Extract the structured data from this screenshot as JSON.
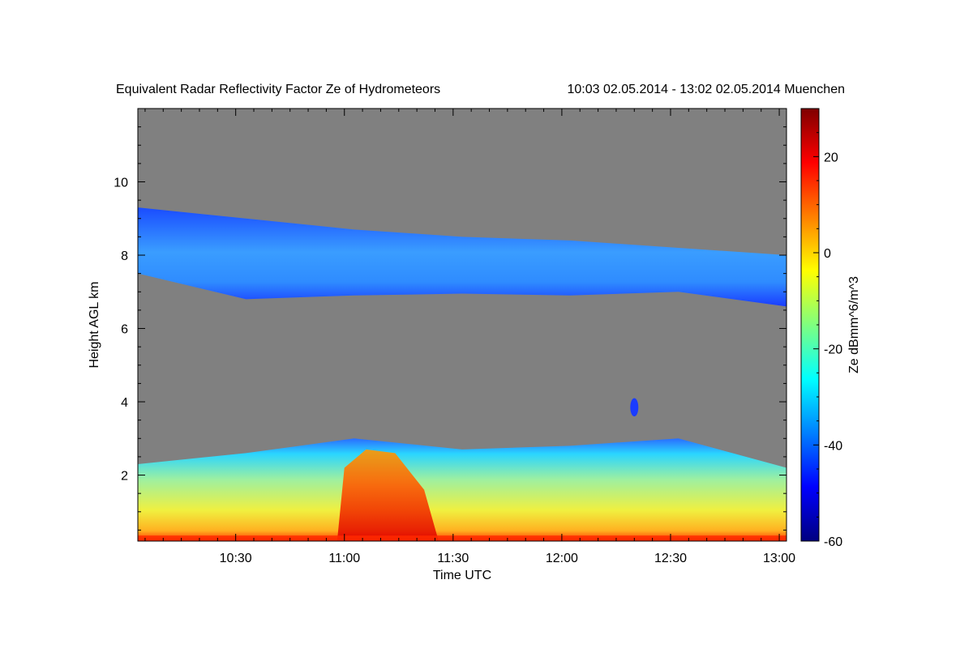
{
  "chart_data": {
    "type": "heatmap",
    "title": "Equivalent Radar Reflectivity Factor Ze of Hydrometeors",
    "subtitle": "10:03 02.05.2014 - 13:02 02.05.2014 Muenchen",
    "xlabel": "Time UTC",
    "ylabel": "Height AGL km",
    "colorbar_label": "Ze dBmm^6/m^3",
    "x_range": [
      "10:03",
      "13:02"
    ],
    "x_ticks": [
      "10:30",
      "11:00",
      "11:30",
      "12:00",
      "12:30",
      "13:00"
    ],
    "ylim": [
      0.2,
      12.0
    ],
    "y_ticks": [
      2,
      4,
      6,
      8,
      10
    ],
    "colorbar_range": [
      -60,
      30
    ],
    "colorbar_ticks": [
      20,
      0,
      -20,
      -40,
      -60
    ],
    "colormap": "jet",
    "no_signal_color": "#808080",
    "layers": [
      {
        "name": "upper cloud band",
        "start": "10:03",
        "end": "13:02",
        "base_km": [
          7.5,
          6.8,
          6.9,
          6.95,
          6.9,
          7.0,
          6.6
        ],
        "top_km": [
          9.3,
          9.0,
          8.7,
          8.5,
          8.4,
          8.2,
          8.0
        ],
        "ze_range_dbz": [
          -45,
          -30
        ]
      },
      {
        "name": "lower precipitation layer",
        "start": "10:03",
        "end": "13:02",
        "base_km": [
          0.2,
          0.2
        ],
        "top_km": [
          2.3,
          2.6,
          3.0,
          2.7,
          2.8,
          3.0,
          2.2
        ],
        "ze_range_dbz": [
          -50,
          20
        ]
      },
      {
        "name": "isolated echo",
        "start": "12:20",
        "end": "12:21",
        "base_km": [
          3.6
        ],
        "top_km": [
          4.1
        ],
        "ze_range_dbz": [
          -50,
          -45
        ]
      }
    ]
  }
}
